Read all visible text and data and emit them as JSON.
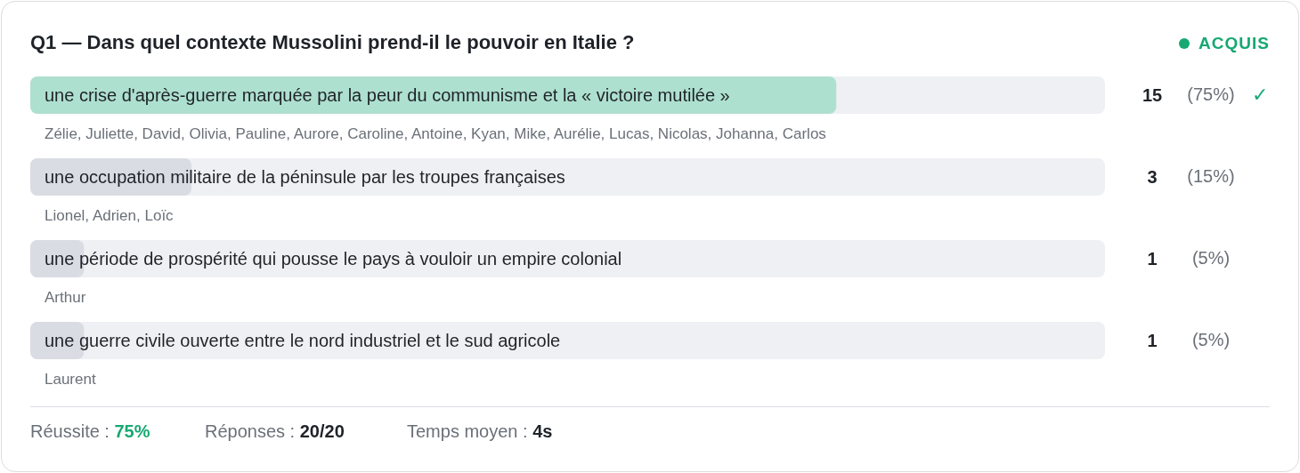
{
  "chart_data": {
    "type": "bar",
    "orientation": "horizontal",
    "title": "Q1 — Dans quel contexte Mussolini prend-il le pouvoir en Italie ?",
    "subtitle": "ACQUIS",
    "categories": [
      "une crise d'après-guerre marquée par la peur du communisme et la « victoire mutilée »",
      "une occupation militaire de la péninsule par les troupes françaises",
      "une période de prospérité qui pousse le pays à vouloir un empire colonial",
      "une guerre civile ouverte entre le nord industriel et le sud agricole"
    ],
    "values": [
      15,
      3,
      1,
      1
    ],
    "colors": [
      "#aee0cf",
      "#d9dce2",
      "#d9dce2",
      "#d9dce2"
    ],
    "xlim": [
      0,
      20
    ],
    "tick_labels": "y",
    "data_labels": true,
    "annotations": [
      "(75%)",
      "(15%)",
      "(5%)",
      "(5%)",
      "✓",
      "Zélie, Juliette, David, Olivia, Pauline, Aurore, Caroline, Antoine, Kyan, Mike, Aurélie, Lucas, Nicolas, Johanna, Carlos",
      "Lionel, Adrien, Loïc",
      "Arthur",
      "Laurent",
      "Réussite : 75%",
      "Réponses : 20/20",
      "Temps moyen : 4s"
    ]
  }
}
